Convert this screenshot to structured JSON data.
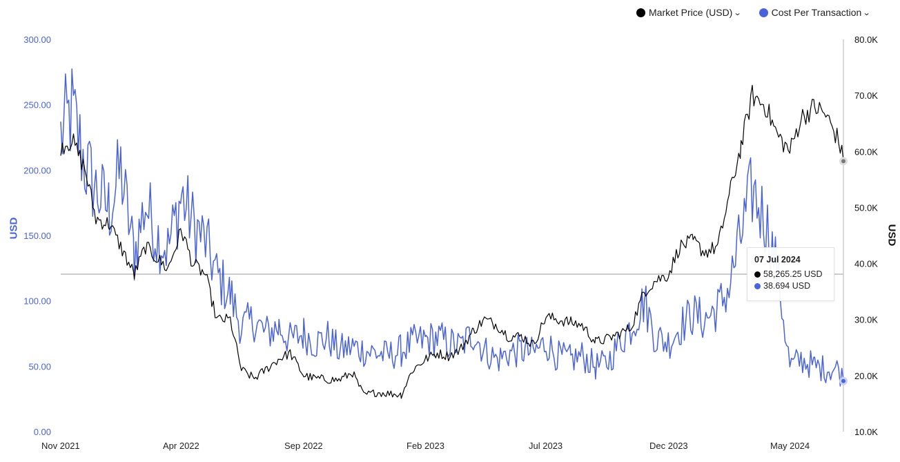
{
  "legend": {
    "market_price_label": "Market Price (USD)",
    "cost_label": "Cost Per Transaction",
    "chevron": "⌄"
  },
  "axes": {
    "left_title": "USD",
    "right_title": "USD",
    "left_ticks": [
      "0.00",
      "50.00",
      "100.00",
      "150.00",
      "200.00",
      "250.00",
      "300.00"
    ],
    "right_ticks": [
      "10.0K",
      "20.0K",
      "30.0K",
      "40.0K",
      "50.0K",
      "60.0K",
      "70.0K",
      "80.0K"
    ],
    "x_ticks": [
      "Nov 2021",
      "Apr 2022",
      "Sep 2022",
      "Feb 2023",
      "Jul 2023",
      "Dec 2023",
      "May 2024"
    ]
  },
  "tooltip": {
    "date": "07 Jul 2024",
    "price_text": "58,265.25 USD",
    "cost_text": "38.694 USD"
  },
  "colors": {
    "price": "#000000",
    "cost": "#4a63d8",
    "left_axis": "#4a63d8",
    "right_axis": "#111111",
    "crosshair": "#9a9a9a"
  },
  "chart_data": {
    "type": "line",
    "x_range": [
      "2021-11-01",
      "2024-07-07"
    ],
    "left_axis": {
      "title": "USD",
      "ylim": [
        0,
        300
      ],
      "series": "Cost Per Transaction"
    },
    "right_axis": {
      "title": "USD",
      "ylim": [
        10000,
        80000
      ],
      "series": "Market Price (USD)"
    },
    "legend_position": "top-right",
    "grid": false,
    "series": [
      {
        "name": "Market Price (USD)",
        "axis": "right",
        "points": [
          [
            "2021-11-01",
            61000
          ],
          [
            "2021-11-15",
            62000
          ],
          [
            "2021-12-01",
            57000
          ],
          [
            "2021-12-15",
            48000
          ],
          [
            "2022-01-01",
            47000
          ],
          [
            "2022-01-15",
            43000
          ],
          [
            "2022-02-01",
            38000
          ],
          [
            "2022-02-15",
            43000
          ],
          [
            "2022-03-01",
            41000
          ],
          [
            "2022-03-15",
            39000
          ],
          [
            "2022-04-01",
            46000
          ],
          [
            "2022-04-15",
            40000
          ],
          [
            "2022-05-01",
            38000
          ],
          [
            "2022-05-15",
            30000
          ],
          [
            "2022-06-01",
            30000
          ],
          [
            "2022-06-15",
            21000
          ],
          [
            "2022-07-01",
            19500
          ],
          [
            "2022-07-15",
            21000
          ],
          [
            "2022-08-01",
            23000
          ],
          [
            "2022-08-15",
            24000
          ],
          [
            "2022-09-01",
            20000
          ],
          [
            "2022-09-15",
            19500
          ],
          [
            "2022-10-01",
            19300
          ],
          [
            "2022-10-15",
            19200
          ],
          [
            "2022-11-01",
            20500
          ],
          [
            "2022-11-15",
            16500
          ],
          [
            "2022-12-01",
            17000
          ],
          [
            "2022-12-15",
            16800
          ],
          [
            "2023-01-01",
            16600
          ],
          [
            "2023-01-15",
            21000
          ],
          [
            "2023-02-01",
            23000
          ],
          [
            "2023-02-15",
            24000
          ],
          [
            "2023-03-01",
            23500
          ],
          [
            "2023-03-15",
            24500
          ],
          [
            "2023-04-01",
            28000
          ],
          [
            "2023-04-15",
            30000
          ],
          [
            "2023-05-01",
            29000
          ],
          [
            "2023-05-15",
            27000
          ],
          [
            "2023-06-01",
            27000
          ],
          [
            "2023-06-15",
            25500
          ],
          [
            "2023-07-01",
            30500
          ],
          [
            "2023-07-15",
            30000
          ],
          [
            "2023-08-01",
            29500
          ],
          [
            "2023-08-15",
            29000
          ],
          [
            "2023-09-01",
            26000
          ],
          [
            "2023-09-15",
            26500
          ],
          [
            "2023-10-01",
            27500
          ],
          [
            "2023-10-15",
            28500
          ],
          [
            "2023-11-01",
            35000
          ],
          [
            "2023-11-15",
            37000
          ],
          [
            "2023-12-01",
            38000
          ],
          [
            "2023-12-15",
            43000
          ],
          [
            "2024-01-01",
            44000
          ],
          [
            "2024-01-15",
            42000
          ],
          [
            "2024-02-01",
            43000
          ],
          [
            "2024-02-15",
            52000
          ],
          [
            "2024-03-01",
            61000
          ],
          [
            "2024-03-15",
            70000
          ],
          [
            "2024-04-01",
            68000
          ],
          [
            "2024-04-15",
            63000
          ],
          [
            "2024-05-01",
            60000
          ],
          [
            "2024-05-15",
            66000
          ],
          [
            "2024-06-01",
            68000
          ],
          [
            "2024-06-15",
            66500
          ],
          [
            "2024-07-01",
            62000
          ],
          [
            "2024-07-07",
            58265.25
          ]
        ]
      },
      {
        "name": "Cost Per Transaction",
        "axis": "left",
        "points": [
          [
            "2021-11-01",
            225
          ],
          [
            "2021-11-15",
            245
          ],
          [
            "2021-12-01",
            205
          ],
          [
            "2021-12-15",
            185
          ],
          [
            "2022-01-01",
            170
          ],
          [
            "2022-01-15",
            200
          ],
          [
            "2022-02-01",
            135
          ],
          [
            "2022-02-15",
            175
          ],
          [
            "2022-03-01",
            150
          ],
          [
            "2022-03-15",
            140
          ],
          [
            "2022-04-01",
            180
          ],
          [
            "2022-04-15",
            160
          ],
          [
            "2022-05-01",
            145
          ],
          [
            "2022-05-15",
            120
          ],
          [
            "2022-06-01",
            105
          ],
          [
            "2022-06-15",
            80
          ],
          [
            "2022-07-01",
            85
          ],
          [
            "2022-07-15",
            75
          ],
          [
            "2022-08-01",
            80
          ],
          [
            "2022-08-15",
            70
          ],
          [
            "2022-09-01",
            75
          ],
          [
            "2022-09-15",
            68
          ],
          [
            "2022-10-01",
            72
          ],
          [
            "2022-10-15",
            62
          ],
          [
            "2022-11-01",
            65
          ],
          [
            "2022-11-15",
            62
          ],
          [
            "2022-12-01",
            60
          ],
          [
            "2022-12-15",
            58
          ],
          [
            "2023-01-01",
            62
          ],
          [
            "2023-01-15",
            68
          ],
          [
            "2023-02-01",
            70
          ],
          [
            "2023-02-15",
            72
          ],
          [
            "2023-03-01",
            68
          ],
          [
            "2023-03-15",
            65
          ],
          [
            "2023-04-01",
            75
          ],
          [
            "2023-04-15",
            62
          ],
          [
            "2023-05-01",
            55
          ],
          [
            "2023-05-15",
            60
          ],
          [
            "2023-06-01",
            62
          ],
          [
            "2023-06-15",
            60
          ],
          [
            "2023-07-01",
            68
          ],
          [
            "2023-07-15",
            58
          ],
          [
            "2023-08-01",
            55
          ],
          [
            "2023-08-15",
            58
          ],
          [
            "2023-09-01",
            50
          ],
          [
            "2023-09-15",
            52
          ],
          [
            "2023-10-01",
            68
          ],
          [
            "2023-10-15",
            80
          ],
          [
            "2023-11-01",
            100
          ],
          [
            "2023-11-15",
            72
          ],
          [
            "2023-12-01",
            68
          ],
          [
            "2023-12-15",
            80
          ],
          [
            "2024-01-01",
            90
          ],
          [
            "2024-01-15",
            85
          ],
          [
            "2024-02-01",
            95
          ],
          [
            "2024-02-15",
            110
          ],
          [
            "2024-03-01",
            150
          ],
          [
            "2024-03-15",
            185
          ],
          [
            "2024-04-01",
            160
          ],
          [
            "2024-04-15",
            125
          ],
          [
            "2024-05-01",
            50
          ],
          [
            "2024-05-15",
            55
          ],
          [
            "2024-06-01",
            50
          ],
          [
            "2024-06-15",
            48
          ],
          [
            "2024-07-01",
            48
          ],
          [
            "2024-07-07",
            38.694
          ]
        ]
      }
    ]
  }
}
